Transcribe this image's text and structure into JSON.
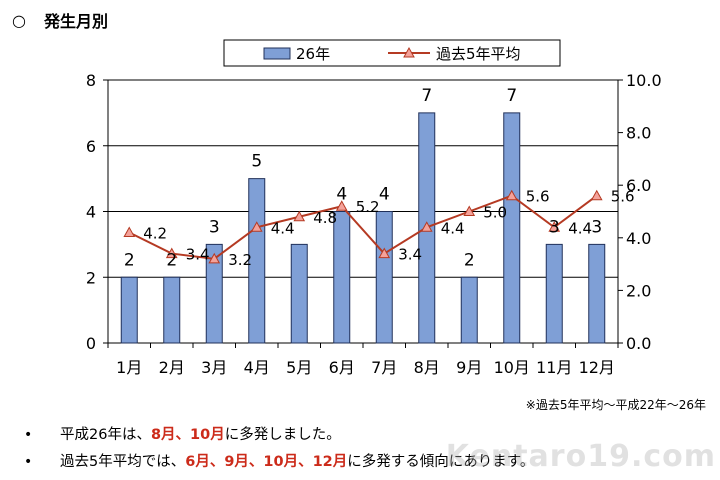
{
  "heading": {
    "mark": "○",
    "title": "発生月別"
  },
  "chart_data": {
    "type": "bar",
    "categories": [
      "1月",
      "2月",
      "3月",
      "4月",
      "5月",
      "6月",
      "7月",
      "8月",
      "9月",
      "10月",
      "11月",
      "12月"
    ],
    "series": [
      {
        "name": "26年",
        "type": "bar",
        "axis": "left",
        "values": [
          2,
          2,
          3,
          5,
          3,
          4,
          4,
          7,
          2,
          7,
          3,
          3
        ],
        "data_labels": [
          "2",
          "2",
          "3",
          "5",
          "",
          "4",
          "4",
          "7",
          "2",
          "7",
          "3",
          "3"
        ]
      },
      {
        "name": "過去5年平均",
        "type": "line",
        "axis": "right",
        "values": [
          4.2,
          3.4,
          3.2,
          4.4,
          4.8,
          5.2,
          3.4,
          4.4,
          5.0,
          5.6,
          4.4,
          5.6
        ],
        "data_labels": [
          "4.2",
          "3.4",
          "3.2",
          "4.4",
          "4.8",
          "5.2",
          "3.4",
          "4.4",
          "5.0",
          "5.6",
          "4.4",
          "5.6"
        ]
      }
    ],
    "left_axis": {
      "ylim": [
        0,
        8
      ],
      "ticks": [
        "0",
        "2",
        "4",
        "6",
        "8"
      ]
    },
    "right_axis": {
      "ylim": [
        0,
        10
      ],
      "ticks": [
        "0.0",
        "2.0",
        "4.0",
        "6.0",
        "8.0",
        "10.0"
      ]
    },
    "grid": true,
    "legend": "top-center",
    "colors": {
      "bar_fill": "#7f9fd6",
      "bar_stroke": "#20305a",
      "line": "#b53a23",
      "marker_fill": "#f4a29a"
    }
  },
  "source_note": "※過去5年平均～平成22年～26年",
  "bullets": [
    {
      "symbol": "•",
      "parts": [
        {
          "text": "平成26年は、",
          "hl": false
        },
        {
          "text": "8月、10月",
          "hl": true
        },
        {
          "text": " に多発しました。",
          "hl": false
        }
      ]
    },
    {
      "symbol": "•",
      "parts": [
        {
          "text": "過去5年平均では、",
          "hl": false
        },
        {
          "text": "6月、9月、10月、12月",
          "hl": true
        },
        {
          "text": "に多発する傾向にあります。",
          "hl": false
        }
      ]
    }
  ],
  "watermark": "Kentaro19.com"
}
